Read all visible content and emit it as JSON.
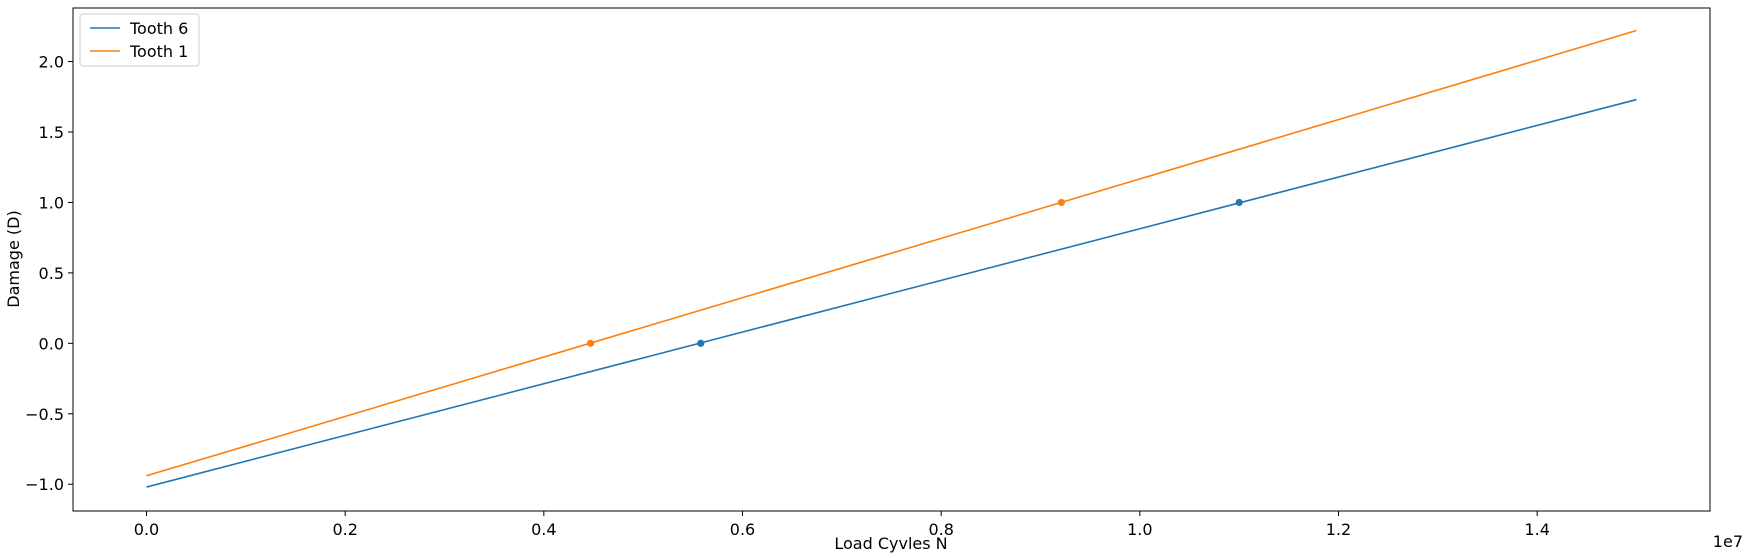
{
  "chart_data": {
    "type": "line",
    "xlabel": "Load Cyvles N",
    "ylabel": "Damage (D)",
    "x_offset_text": "1e7",
    "xlim": [
      -0.074,
      1.574
    ],
    "ylim": [
      -1.19,
      2.38
    ],
    "x_ticks": [
      0.0,
      0.2,
      0.4,
      0.6,
      0.8,
      1.0,
      1.2,
      1.4
    ],
    "x_tick_labels": [
      "0.0",
      "0.2",
      "0.4",
      "0.6",
      "0.8",
      "1.0",
      "1.2",
      "1.4"
    ],
    "y_ticks": [
      -1.0,
      -0.5,
      0.0,
      0.5,
      1.0,
      1.5,
      2.0
    ],
    "y_tick_labels": [
      "−1.0",
      "−0.5",
      "0.0",
      "0.5",
      "1.0",
      "1.5",
      "2.0"
    ],
    "grid": false,
    "legend_position": "top-left",
    "series": [
      {
        "name": "Tooth 6",
        "color": "#1f77b4",
        "x": [
          0.0,
          1.5
        ],
        "y": [
          -1.02,
          1.73
        ],
        "markers": [
          {
            "x": 0.558,
            "y": 0.0
          },
          {
            "x": 1.1,
            "y": 1.0
          }
        ]
      },
      {
        "name": "Tooth 1",
        "color": "#ff7f0e",
        "x": [
          0.0,
          1.5
        ],
        "y": [
          -0.94,
          2.22
        ],
        "markers": [
          {
            "x": 0.447,
            "y": 0.0
          },
          {
            "x": 0.921,
            "y": 1.0
          }
        ]
      }
    ]
  }
}
